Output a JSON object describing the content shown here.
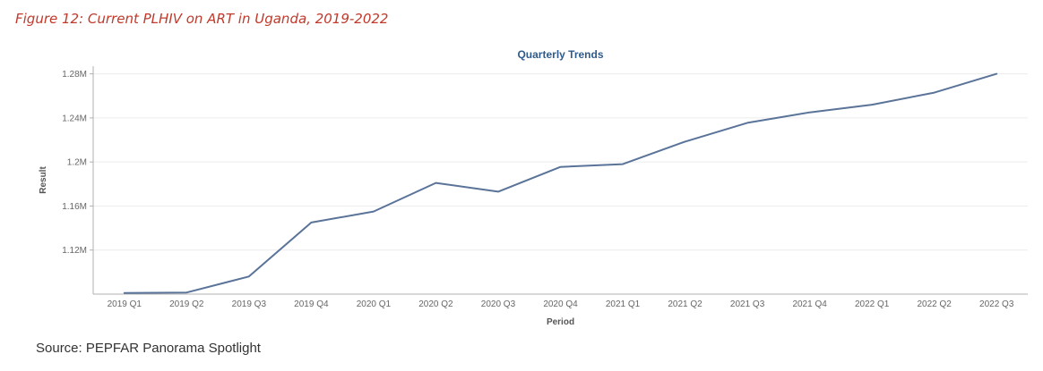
{
  "figure_caption": "Figure 12: Current PLHIV on ART in Uganda, 2019-2022",
  "source_note": "Source: PEPFAR Panorama Spotlight",
  "chart_data": {
    "type": "line",
    "title": "Quarterly Trends",
    "xlabel": "Period",
    "ylabel": "Result",
    "categories": [
      "2019 Q1",
      "2019 Q2",
      "2019 Q3",
      "2019 Q4",
      "2020 Q1",
      "2020 Q2",
      "2020 Q3",
      "2020 Q4",
      "2021 Q1",
      "2021 Q2",
      "2021 Q3",
      "2021 Q4",
      "2022 Q1",
      "2022 Q2",
      "2022 Q3"
    ],
    "series": [
      {
        "values": [
          1081000,
          1081500,
          1096000,
          1145000,
          1155000,
          1181000,
          1173000,
          1195500,
          1198000,
          1218500,
          1235500,
          1245000,
          1252000,
          1263000,
          1280000
        ]
      }
    ],
    "yticks": [
      {
        "value": 1120000,
        "label": "1.12M"
      },
      {
        "value": 1160000,
        "label": "1.16M"
      },
      {
        "value": 1200000,
        "label": "1.2M"
      },
      {
        "value": 1240000,
        "label": "1.24M"
      },
      {
        "value": 1280000,
        "label": "1.28M"
      }
    ],
    "ylim": [
      1080000,
      1287000
    ],
    "grid": true,
    "legend": "none",
    "colors": {
      "line": "#5a7398",
      "grid": "#ececec",
      "axis": "#b0b0b0",
      "title": "#2f5b8a"
    }
  }
}
